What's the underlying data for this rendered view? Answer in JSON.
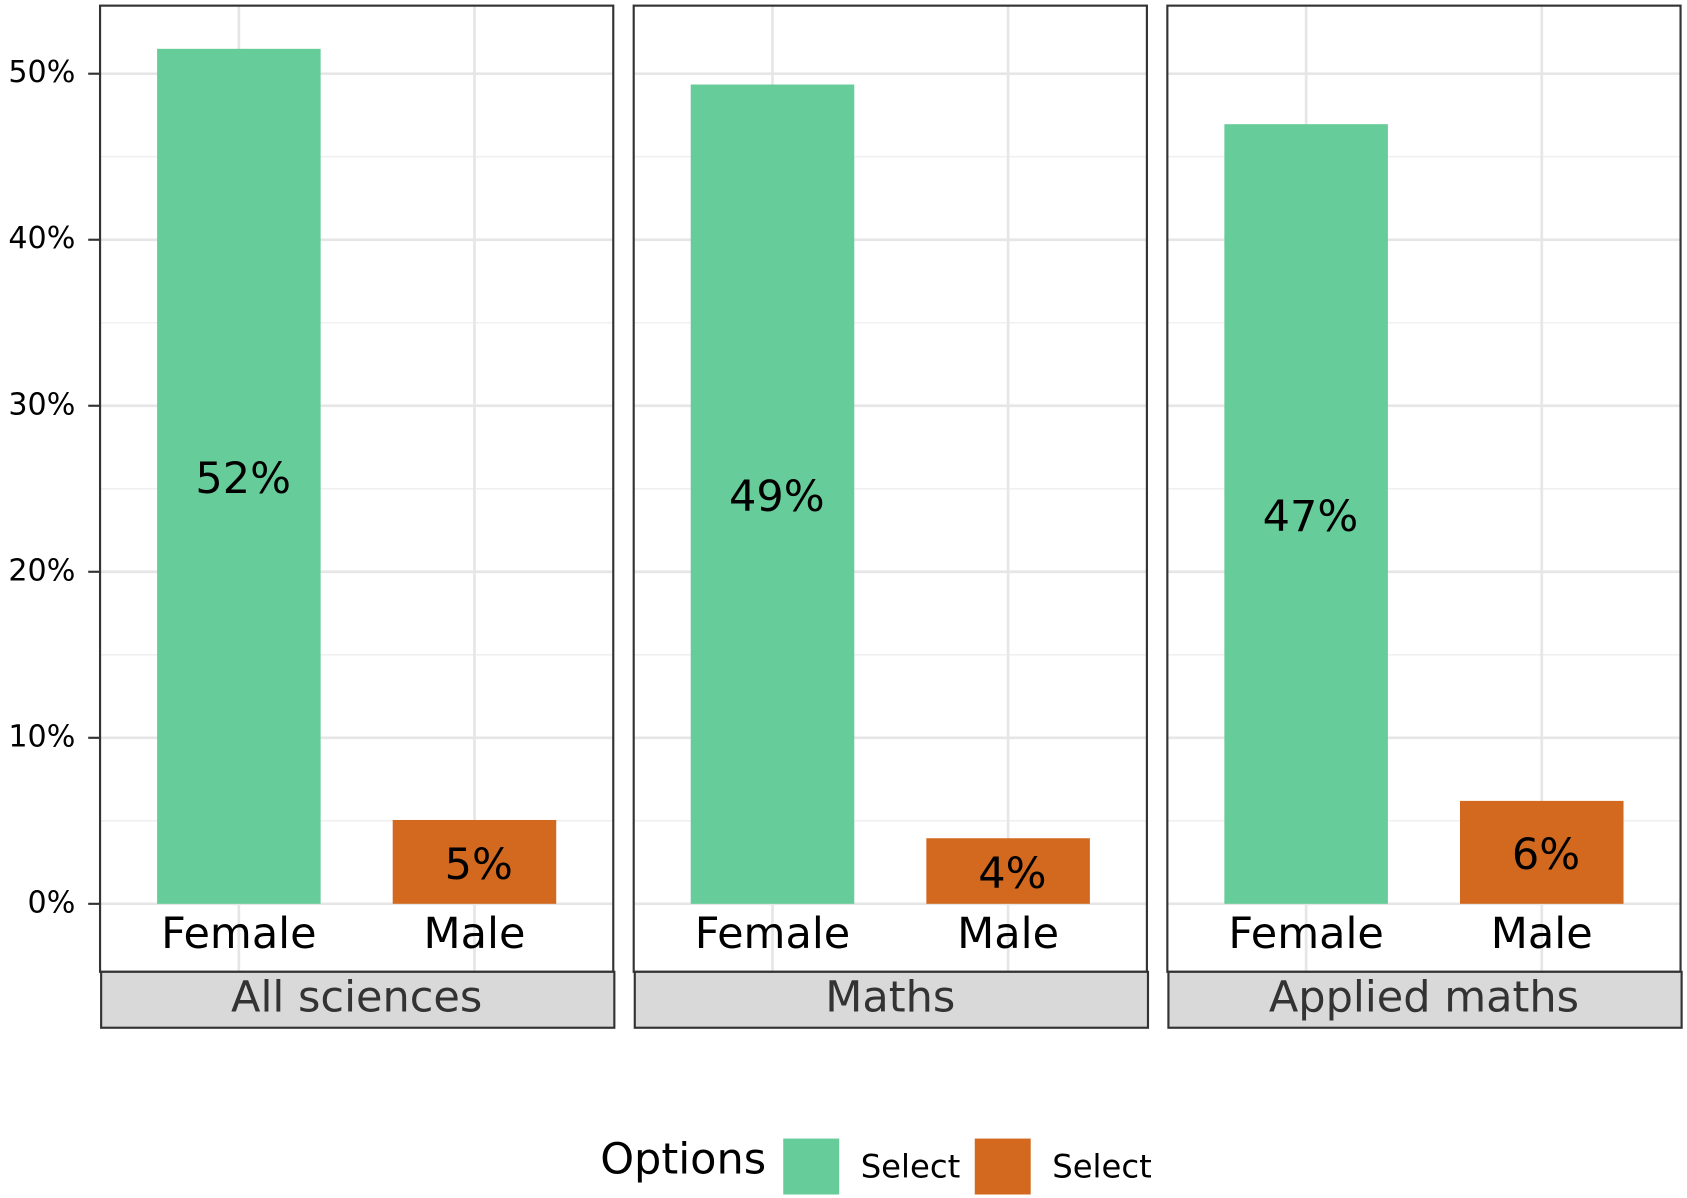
{
  "chart_data": {
    "type": "bar",
    "categories": [
      "Female",
      "Male"
    ],
    "facets": [
      {
        "title": "All sciences",
        "values": [
          51.5,
          5.05
        ],
        "value_labels": [
          "52%",
          "5%"
        ]
      },
      {
        "title": "Maths",
        "values": [
          49.35,
          3.95
        ],
        "value_labels": [
          "49%",
          "4%"
        ]
      },
      {
        "title": "Applied maths",
        "values": [
          46.96,
          6.2
        ],
        "value_labels": [
          "47%",
          "6%"
        ]
      }
    ],
    "legend": {
      "title": "Options",
      "entries": [
        {
          "name": "Select",
          "color": "#66cc99"
        },
        {
          "name": "Select",
          "color": "#d2691e"
        }
      ]
    },
    "ylim": [
      -3.9,
      54.1
    ],
    "yticks": [
      {
        "value": 0,
        "label": "0%"
      },
      {
        "value": 10,
        "label": "10%"
      },
      {
        "value": 20,
        "label": "20%"
      },
      {
        "value": 30,
        "label": "30%"
      },
      {
        "value": 40,
        "label": "40%"
      },
      {
        "value": 50,
        "label": "50%"
      }
    ],
    "y_minor_ticks": [
      5,
      15,
      25,
      35,
      45
    ],
    "grid": true
  }
}
